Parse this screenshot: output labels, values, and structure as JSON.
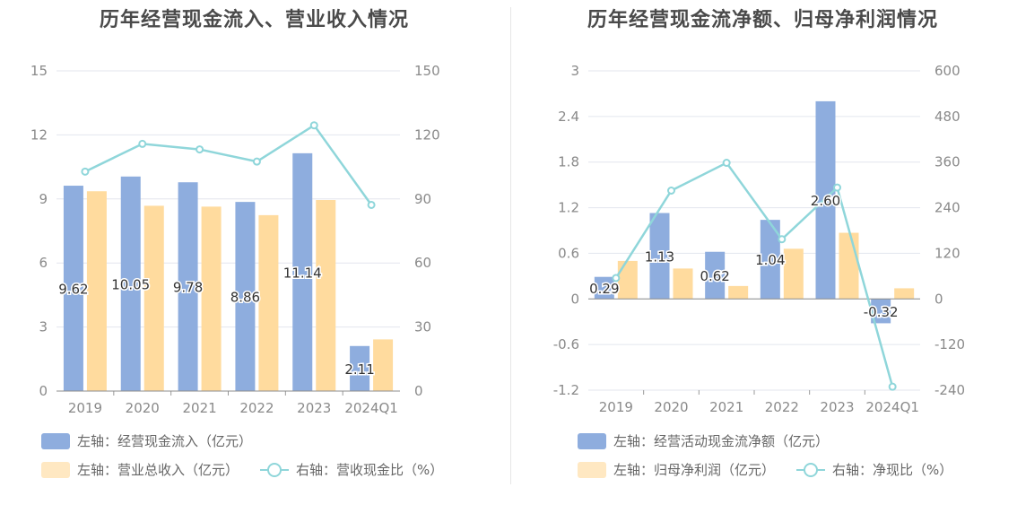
{
  "colors": {
    "bar_primary": "#8eadde",
    "bar_secondary": "#ffdb9e",
    "line": "#8fd6da",
    "grid": "#e3e6ee",
    "axis_text": "#8a8a8a",
    "label_text": "#333333"
  },
  "chart_data": [
    {
      "type": "bar",
      "title": "历年经营现金流入、营业收入情况",
      "categories": [
        "2019",
        "2020",
        "2021",
        "2022",
        "2023",
        "2024Q1"
      ],
      "left_axis": {
        "ylim": [
          0,
          15
        ],
        "ticks": [
          "0",
          "3",
          "6",
          "9",
          "12",
          "15"
        ]
      },
      "right_axis": {
        "ylim": [
          0,
          150
        ],
        "ticks": [
          "0",
          "30",
          "60",
          "90",
          "120",
          "150"
        ]
      },
      "series": [
        {
          "name": "左轴：经营现金流入（亿元）",
          "axis": "left",
          "kind": "bar",
          "values": [
            9.62,
            10.05,
            9.78,
            8.86,
            11.14,
            2.11
          ],
          "labels": [
            "9.62",
            "10.05",
            "9.78",
            "8.86",
            "11.14",
            "2.11"
          ]
        },
        {
          "name": "左轴：营业总收入（亿元）",
          "axis": "left",
          "kind": "bar",
          "values": [
            9.36,
            8.68,
            8.64,
            8.24,
            8.95,
            2.42
          ]
        },
        {
          "name": "右轴：营收现金比（%）",
          "axis": "right",
          "kind": "line",
          "values": [
            102.8,
            115.8,
            113.2,
            107.5,
            124.5,
            87.2
          ]
        }
      ]
    },
    {
      "type": "bar",
      "title": "历年经营现金流净额、归母净利润情况",
      "categories": [
        "2019",
        "2020",
        "2021",
        "2022",
        "2023",
        "2024Q1"
      ],
      "left_axis": {
        "ylim": [
          -1.2,
          3
        ],
        "ticks": [
          "-1.2",
          "-0.6",
          "0",
          "0.6",
          "1.2",
          "1.8",
          "2.4",
          "3"
        ]
      },
      "right_axis": {
        "ylim": [
          -240,
          600
        ],
        "ticks": [
          "-240",
          "-120",
          "0",
          "120",
          "240",
          "360",
          "480",
          "600"
        ]
      },
      "series": [
        {
          "name": "左轴：经营活动现金流净额（亿元）",
          "axis": "left",
          "kind": "bar",
          "values": [
            0.29,
            1.13,
            0.62,
            1.04,
            2.6,
            -0.32
          ],
          "labels": [
            "0.29",
            "1.13",
            "0.62",
            "1.04",
            "2.60",
            "-0.32"
          ]
        },
        {
          "name": "左轴：归母净利润（亿元）",
          "axis": "left",
          "kind": "bar",
          "values": [
            0.5,
            0.4,
            0.17,
            0.66,
            0.87,
            0.14
          ]
        },
        {
          "name": "右轴：净现比（%）",
          "axis": "right",
          "kind": "line",
          "values": [
            55,
            285,
            358,
            157,
            293,
            -231
          ]
        }
      ]
    }
  ]
}
